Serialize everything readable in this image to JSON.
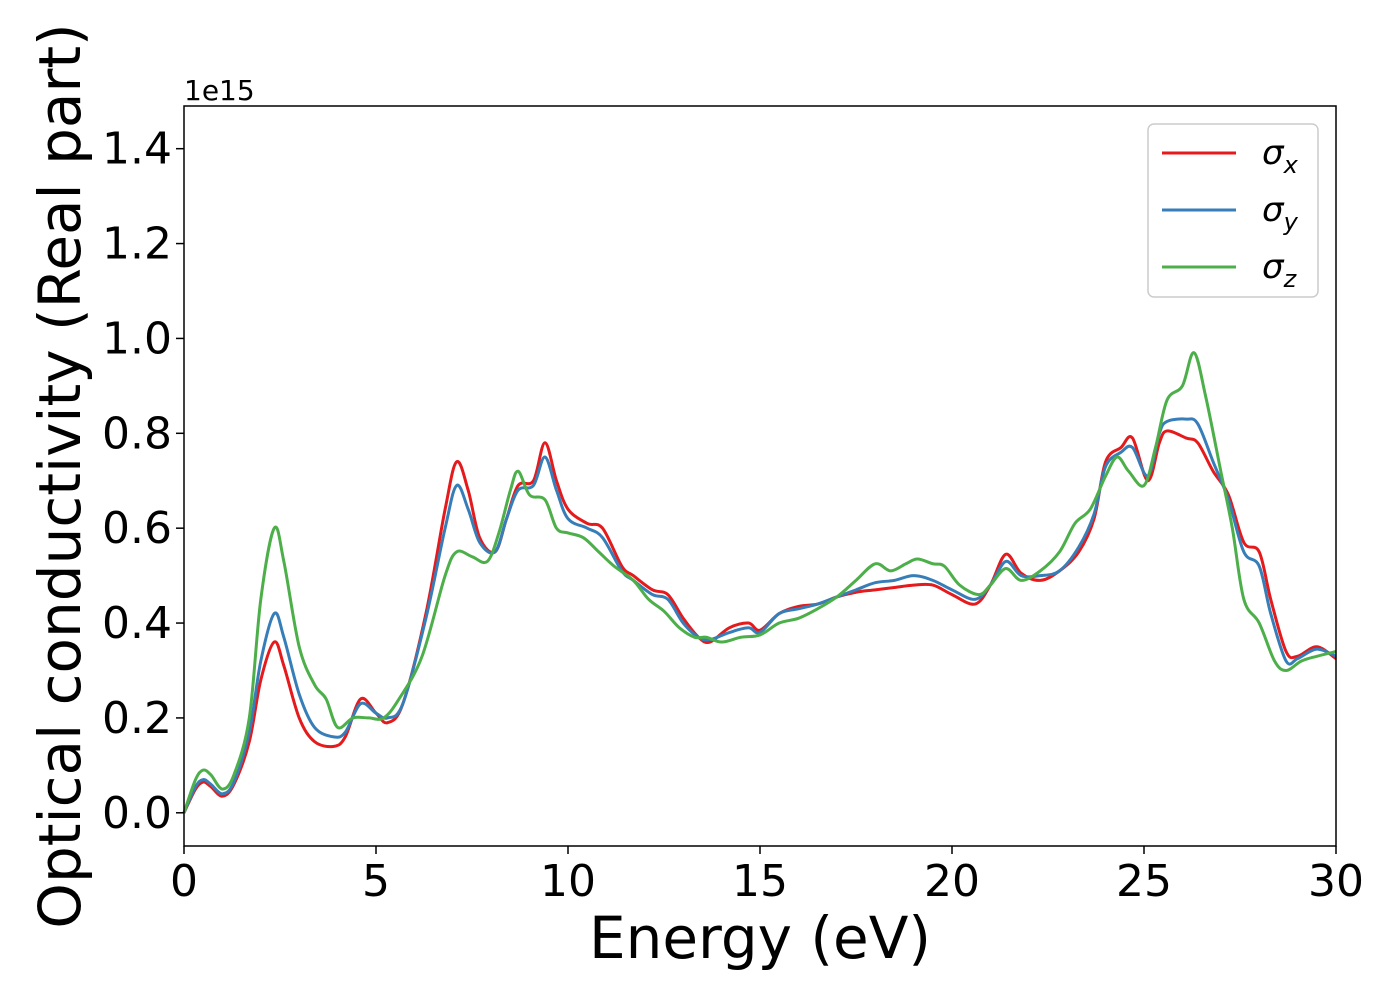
{
  "chart_data": {
    "type": "line",
    "xlabel": "Energy (eV)",
    "ylabel": "Optical conductivity (Real part)",
    "y_offset_text": "1e15",
    "xlim": [
      0,
      30
    ],
    "ylim": [
      -0.07,
      1.49
    ],
    "xticks": [
      0,
      5,
      10,
      15,
      20,
      25,
      30
    ],
    "xtick_labels": [
      "0",
      "5",
      "10",
      "15",
      "20",
      "25",
      "30"
    ],
    "yticks": [
      0.0,
      0.2,
      0.4,
      0.6,
      0.8,
      1.0,
      1.2,
      1.4
    ],
    "ytick_labels": [
      "0.0",
      "0.2",
      "0.4",
      "0.6",
      "0.8",
      "1.0",
      "1.2",
      "1.4"
    ],
    "grid": false,
    "legend_position": "top-right",
    "series": [
      {
        "legend_symbol": "σ",
        "legend_subscript": "x",
        "color": "#e41a1c",
        "points": [
          [
            0,
            0
          ],
          [
            0.3,
            0.05
          ],
          [
            0.5,
            0.065
          ],
          [
            0.7,
            0.055
          ],
          [
            1.0,
            0.035
          ],
          [
            1.3,
            0.06
          ],
          [
            1.7,
            0.15
          ],
          [
            2.0,
            0.28
          ],
          [
            2.35,
            0.36
          ],
          [
            2.6,
            0.31
          ],
          [
            3.0,
            0.2
          ],
          [
            3.4,
            0.15
          ],
          [
            3.9,
            0.14
          ],
          [
            4.2,
            0.16
          ],
          [
            4.6,
            0.24
          ],
          [
            5.0,
            0.21
          ],
          [
            5.3,
            0.19
          ],
          [
            5.7,
            0.23
          ],
          [
            6.3,
            0.42
          ],
          [
            6.8,
            0.64
          ],
          [
            7.1,
            0.74
          ],
          [
            7.4,
            0.68
          ],
          [
            7.7,
            0.58
          ],
          [
            8.1,
            0.55
          ],
          [
            8.4,
            0.62
          ],
          [
            8.7,
            0.69
          ],
          [
            9.1,
            0.7
          ],
          [
            9.4,
            0.78
          ],
          [
            9.7,
            0.7
          ],
          [
            10.0,
            0.64
          ],
          [
            10.5,
            0.61
          ],
          [
            10.9,
            0.6
          ],
          [
            11.4,
            0.52
          ],
          [
            11.7,
            0.5
          ],
          [
            12.2,
            0.47
          ],
          [
            12.6,
            0.46
          ],
          [
            13.0,
            0.41
          ],
          [
            13.4,
            0.37
          ],
          [
            13.7,
            0.36
          ],
          [
            14.2,
            0.39
          ],
          [
            14.7,
            0.4
          ],
          [
            15.0,
            0.385
          ],
          [
            15.5,
            0.42
          ],
          [
            16.0,
            0.435
          ],
          [
            16.5,
            0.44
          ],
          [
            17.0,
            0.455
          ],
          [
            17.5,
            0.465
          ],
          [
            18.0,
            0.47
          ],
          [
            18.5,
            0.475
          ],
          [
            19.0,
            0.48
          ],
          [
            19.5,
            0.48
          ],
          [
            20.0,
            0.46
          ],
          [
            20.6,
            0.44
          ],
          [
            21.0,
            0.48
          ],
          [
            21.4,
            0.545
          ],
          [
            21.8,
            0.505
          ],
          [
            22.3,
            0.49
          ],
          [
            22.8,
            0.51
          ],
          [
            23.3,
            0.55
          ],
          [
            23.7,
            0.62
          ],
          [
            24.0,
            0.74
          ],
          [
            24.4,
            0.77
          ],
          [
            24.7,
            0.79
          ],
          [
            25.1,
            0.7
          ],
          [
            25.4,
            0.78
          ],
          [
            25.6,
            0.805
          ],
          [
            26.1,
            0.79
          ],
          [
            26.4,
            0.78
          ],
          [
            26.8,
            0.72
          ],
          [
            27.2,
            0.67
          ],
          [
            27.6,
            0.57
          ],
          [
            28.0,
            0.55
          ],
          [
            28.3,
            0.45
          ],
          [
            28.7,
            0.34
          ],
          [
            29.0,
            0.33
          ],
          [
            29.5,
            0.35
          ],
          [
            30.0,
            0.325
          ]
        ]
      },
      {
        "legend_symbol": "σ",
        "legend_subscript": "y",
        "color": "#377eb8",
        "points": [
          [
            0,
            0
          ],
          [
            0.3,
            0.055
          ],
          [
            0.5,
            0.07
          ],
          [
            0.7,
            0.06
          ],
          [
            1.0,
            0.04
          ],
          [
            1.3,
            0.065
          ],
          [
            1.7,
            0.17
          ],
          [
            2.0,
            0.32
          ],
          [
            2.35,
            0.42
          ],
          [
            2.6,
            0.37
          ],
          [
            3.0,
            0.25
          ],
          [
            3.4,
            0.18
          ],
          [
            3.9,
            0.16
          ],
          [
            4.2,
            0.17
          ],
          [
            4.6,
            0.23
          ],
          [
            5.0,
            0.21
          ],
          [
            5.3,
            0.2
          ],
          [
            5.7,
            0.23
          ],
          [
            6.3,
            0.41
          ],
          [
            6.8,
            0.6
          ],
          [
            7.1,
            0.69
          ],
          [
            7.4,
            0.64
          ],
          [
            7.7,
            0.57
          ],
          [
            8.1,
            0.55
          ],
          [
            8.4,
            0.62
          ],
          [
            8.7,
            0.68
          ],
          [
            9.1,
            0.69
          ],
          [
            9.4,
            0.75
          ],
          [
            9.7,
            0.68
          ],
          [
            10.0,
            0.62
          ],
          [
            10.5,
            0.6
          ],
          [
            10.9,
            0.58
          ],
          [
            11.4,
            0.51
          ],
          [
            11.7,
            0.49
          ],
          [
            12.2,
            0.46
          ],
          [
            12.6,
            0.45
          ],
          [
            13.0,
            0.4
          ],
          [
            13.4,
            0.37
          ],
          [
            13.7,
            0.365
          ],
          [
            14.2,
            0.38
          ],
          [
            14.7,
            0.39
          ],
          [
            15.0,
            0.38
          ],
          [
            15.5,
            0.42
          ],
          [
            16.0,
            0.43
          ],
          [
            16.5,
            0.44
          ],
          [
            17.0,
            0.455
          ],
          [
            17.5,
            0.47
          ],
          [
            18.0,
            0.485
          ],
          [
            18.5,
            0.49
          ],
          [
            19.0,
            0.5
          ],
          [
            19.5,
            0.49
          ],
          [
            20.0,
            0.47
          ],
          [
            20.6,
            0.45
          ],
          [
            21.0,
            0.48
          ],
          [
            21.4,
            0.53
          ],
          [
            21.8,
            0.5
          ],
          [
            22.3,
            0.5
          ],
          [
            22.8,
            0.51
          ],
          [
            23.3,
            0.56
          ],
          [
            23.7,
            0.63
          ],
          [
            24.0,
            0.73
          ],
          [
            24.4,
            0.76
          ],
          [
            24.7,
            0.77
          ],
          [
            25.1,
            0.71
          ],
          [
            25.4,
            0.8
          ],
          [
            25.6,
            0.825
          ],
          [
            26.1,
            0.83
          ],
          [
            26.4,
            0.82
          ],
          [
            26.8,
            0.74
          ],
          [
            27.2,
            0.66
          ],
          [
            27.6,
            0.55
          ],
          [
            28.0,
            0.52
          ],
          [
            28.3,
            0.42
          ],
          [
            28.7,
            0.32
          ],
          [
            29.0,
            0.325
          ],
          [
            29.5,
            0.345
          ],
          [
            30.0,
            0.33
          ]
        ]
      },
      {
        "legend_symbol": "σ",
        "legend_subscript": "z",
        "color": "#4daf4a",
        "points": [
          [
            0,
            0
          ],
          [
            0.3,
            0.07
          ],
          [
            0.5,
            0.09
          ],
          [
            0.7,
            0.08
          ],
          [
            1.0,
            0.05
          ],
          [
            1.3,
            0.08
          ],
          [
            1.7,
            0.2
          ],
          [
            2.0,
            0.45
          ],
          [
            2.35,
            0.6
          ],
          [
            2.6,
            0.53
          ],
          [
            3.0,
            0.35
          ],
          [
            3.4,
            0.27
          ],
          [
            3.7,
            0.24
          ],
          [
            4.0,
            0.18
          ],
          [
            4.4,
            0.2
          ],
          [
            4.8,
            0.2
          ],
          [
            5.2,
            0.2
          ],
          [
            5.6,
            0.24
          ],
          [
            6.2,
            0.33
          ],
          [
            6.8,
            0.5
          ],
          [
            7.1,
            0.55
          ],
          [
            7.5,
            0.54
          ],
          [
            7.9,
            0.53
          ],
          [
            8.2,
            0.59
          ],
          [
            8.5,
            0.68
          ],
          [
            8.7,
            0.72
          ],
          [
            9.0,
            0.67
          ],
          [
            9.4,
            0.66
          ],
          [
            9.7,
            0.6
          ],
          [
            10.0,
            0.59
          ],
          [
            10.4,
            0.58
          ],
          [
            10.8,
            0.55
          ],
          [
            11.2,
            0.52
          ],
          [
            11.7,
            0.49
          ],
          [
            12.1,
            0.45
          ],
          [
            12.5,
            0.425
          ],
          [
            12.9,
            0.39
          ],
          [
            13.3,
            0.37
          ],
          [
            13.6,
            0.37
          ],
          [
            14.0,
            0.36
          ],
          [
            14.5,
            0.37
          ],
          [
            15.0,
            0.375
          ],
          [
            15.5,
            0.4
          ],
          [
            16.0,
            0.41
          ],
          [
            16.5,
            0.43
          ],
          [
            17.0,
            0.455
          ],
          [
            17.5,
            0.49
          ],
          [
            18.0,
            0.525
          ],
          [
            18.4,
            0.51
          ],
          [
            18.8,
            0.525
          ],
          [
            19.1,
            0.535
          ],
          [
            19.5,
            0.525
          ],
          [
            19.8,
            0.52
          ],
          [
            20.2,
            0.48
          ],
          [
            20.7,
            0.46
          ],
          [
            21.0,
            0.48
          ],
          [
            21.4,
            0.515
          ],
          [
            21.8,
            0.49
          ],
          [
            22.3,
            0.51
          ],
          [
            22.8,
            0.55
          ],
          [
            23.2,
            0.61
          ],
          [
            23.6,
            0.64
          ],
          [
            24.0,
            0.71
          ],
          [
            24.3,
            0.75
          ],
          [
            24.6,
            0.72
          ],
          [
            25.0,
            0.69
          ],
          [
            25.3,
            0.77
          ],
          [
            25.6,
            0.87
          ],
          [
            26.0,
            0.9
          ],
          [
            26.3,
            0.97
          ],
          [
            26.6,
            0.88
          ],
          [
            27.0,
            0.72
          ],
          [
            27.3,
            0.6
          ],
          [
            27.6,
            0.45
          ],
          [
            28.0,
            0.4
          ],
          [
            28.4,
            0.32
          ],
          [
            28.7,
            0.3
          ],
          [
            29.1,
            0.32
          ],
          [
            29.5,
            0.33
          ],
          [
            30.0,
            0.34
          ]
        ]
      }
    ]
  }
}
